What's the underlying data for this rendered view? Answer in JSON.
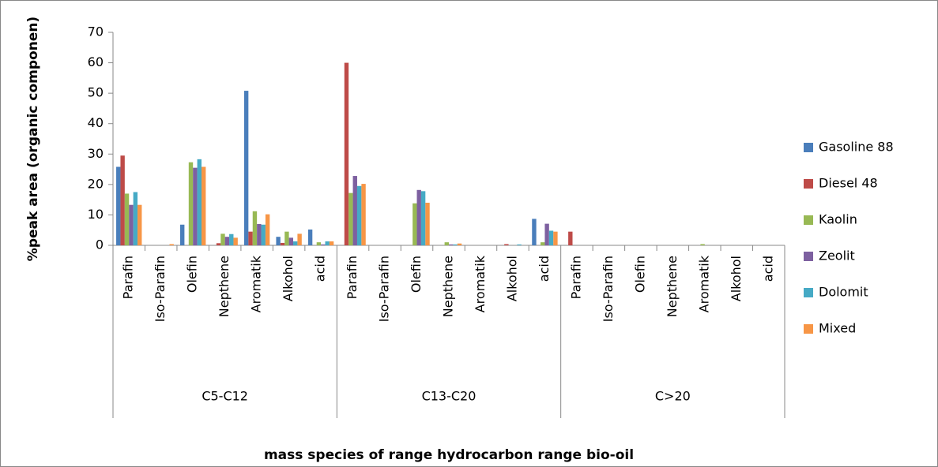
{
  "chart_data": {
    "type": "bar",
    "y_label": "%peak area (organic componen)",
    "x_label": "mass species of range hydrocarbon range bio-oil",
    "groups": [
      "C5-C12",
      "C13-C20",
      "C>20"
    ],
    "categories": [
      "Parafin",
      "Iso-Parafin",
      "Olefin",
      "Nepthene",
      "Aromatik",
      "Alkohol",
      "acid",
      "Parafin",
      "Iso-Parafin",
      "Olefin",
      "Nepthene",
      "Aromatik",
      "Alkohol",
      "acid",
      "Parafin",
      "Iso-Parafin",
      "Olefin",
      "Nepthene",
      "Aromatik",
      "Alkohol",
      "acid"
    ],
    "series": [
      {
        "name": "Gasoline 88",
        "color": "#4a7ebb",
        "values": [
          25.8,
          0,
          6.8,
          0,
          50.8,
          2.8,
          5.2,
          0,
          0,
          0,
          0,
          0,
          0,
          8.7,
          0,
          0,
          0,
          0,
          0,
          0,
          0
        ]
      },
      {
        "name": "Diesel 48",
        "color": "#be4b48",
        "values": [
          29.5,
          0,
          0,
          0.7,
          4.5,
          0.8,
          0,
          60,
          0,
          0,
          0,
          0,
          0.4,
          0,
          4.5,
          0,
          0,
          0,
          0,
          0,
          0
        ]
      },
      {
        "name": "Kaolin",
        "color": "#98b954",
        "values": [
          17,
          0,
          27.3,
          3.8,
          11.2,
          4.5,
          1,
          17.2,
          0,
          13.8,
          1,
          0,
          0,
          1,
          0,
          0,
          0,
          0,
          0.4,
          0,
          0
        ]
      },
      {
        "name": "Zeolit",
        "color": "#7d60a0",
        "values": [
          13.3,
          0,
          25.5,
          2.8,
          7,
          2.5,
          0.3,
          22.8,
          0,
          18.2,
          0.3,
          0,
          0,
          7.1,
          0,
          0,
          0,
          0,
          0,
          0,
          0
        ]
      },
      {
        "name": "Dolomit",
        "color": "#46aac5",
        "values": [
          17.5,
          0,
          28.3,
          3.7,
          6.8,
          1.3,
          1.3,
          19.5,
          0,
          17.8,
          0.3,
          0,
          0.3,
          4.8,
          0,
          0,
          0,
          0,
          0,
          0,
          0
        ]
      },
      {
        "name": "Mixed",
        "color": "#f79646",
        "values": [
          13.3,
          0.4,
          25.8,
          2.5,
          10.2,
          3.8,
          1.3,
          20.2,
          0,
          14,
          0.6,
          0,
          0,
          4.5,
          0,
          0,
          0,
          0,
          0,
          0,
          0
        ]
      }
    ],
    "ylim": [
      0,
      70
    ],
    "yticks": [
      0,
      10,
      20,
      30,
      40,
      50,
      60,
      70
    ],
    "grid": false,
    "legend": "right"
  }
}
